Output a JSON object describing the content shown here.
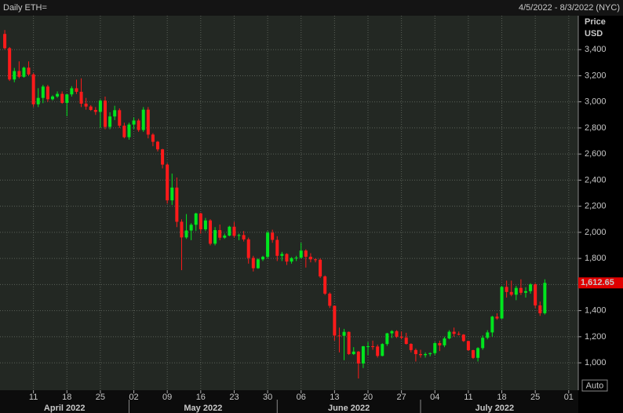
{
  "chart_data": {
    "type": "candlestick",
    "title": "Daily ETH=",
    "date_range": "4/5/2022 - 8/3/2022 (NYC)",
    "y_label": "Price",
    "y_unit": "USD",
    "grid": true,
    "axis_side": "right",
    "x": [
      "2022-04-05",
      "2022-04-06",
      "2022-04-07",
      "2022-04-08",
      "2022-04-09",
      "2022-04-10",
      "2022-04-11",
      "2022-04-12",
      "2022-04-13",
      "2022-04-14",
      "2022-04-15",
      "2022-04-16",
      "2022-04-17",
      "2022-04-18",
      "2022-04-19",
      "2022-04-20",
      "2022-04-21",
      "2022-04-22",
      "2022-04-23",
      "2022-04-24",
      "2022-04-25",
      "2022-04-26",
      "2022-04-27",
      "2022-04-28",
      "2022-04-29",
      "2022-04-30",
      "2022-05-01",
      "2022-05-02",
      "2022-05-03",
      "2022-05-04",
      "2022-05-05",
      "2022-05-06",
      "2022-05-07",
      "2022-05-08",
      "2022-05-09",
      "2022-05-10",
      "2022-05-11",
      "2022-05-12",
      "2022-05-13",
      "2022-05-14",
      "2022-05-15",
      "2022-05-16",
      "2022-05-17",
      "2022-05-18",
      "2022-05-19",
      "2022-05-20",
      "2022-05-21",
      "2022-05-22",
      "2022-05-23",
      "2022-05-24",
      "2022-05-25",
      "2022-05-26",
      "2022-05-27",
      "2022-05-28",
      "2022-05-29",
      "2022-05-30",
      "2022-05-31",
      "2022-06-01",
      "2022-06-02",
      "2022-06-03",
      "2022-06-04",
      "2022-06-05",
      "2022-06-06",
      "2022-06-07",
      "2022-06-08",
      "2022-06-09",
      "2022-06-10",
      "2022-06-11",
      "2022-06-12",
      "2022-06-13",
      "2022-06-14",
      "2022-06-15",
      "2022-06-16",
      "2022-06-17",
      "2022-06-18",
      "2022-06-19",
      "2022-06-20",
      "2022-06-21",
      "2022-06-22",
      "2022-06-23",
      "2022-06-24",
      "2022-06-25",
      "2022-06-26",
      "2022-06-27",
      "2022-06-28",
      "2022-06-29",
      "2022-06-30",
      "2022-07-01",
      "2022-07-02",
      "2022-07-03",
      "2022-07-04",
      "2022-07-05",
      "2022-07-06",
      "2022-07-07",
      "2022-07-08",
      "2022-07-09",
      "2022-07-10",
      "2022-07-11",
      "2022-07-12",
      "2022-07-13",
      "2022-07-14",
      "2022-07-15",
      "2022-07-16",
      "2022-07-17",
      "2022-07-18",
      "2022-07-19",
      "2022-07-20",
      "2022-07-21",
      "2022-07-22",
      "2022-07-23",
      "2022-07-24",
      "2022-07-25",
      "2022-07-26",
      "2022-07-27"
    ],
    "series": [
      {
        "up_color": "#00e61e",
        "down_color": "#ff1a1a",
        "open": [
          3520,
          3411,
          3171,
          3236,
          3192,
          3262,
          3210,
          2981,
          3030,
          3117,
          3020,
          3041,
          3061,
          2992,
          3057,
          3104,
          3077,
          2986,
          2964,
          2938,
          2923,
          3009,
          2808,
          2888,
          2936,
          2817,
          2729,
          2826,
          2857,
          2784,
          2940,
          2749,
          2694,
          2636,
          2519,
          2245,
          2343,
          2081,
          1961,
          2014,
          2058,
          2145,
          2023,
          2091,
          1913,
          2017,
          1959,
          1975,
          2043,
          1973,
          1979,
          1946,
          1804,
          1725,
          1793,
          1812,
          1997,
          1942,
          1820,
          1834,
          1776,
          1802,
          1806,
          1860,
          1813,
          1793,
          1790,
          1662,
          1530,
          1437,
          1209,
          1207,
          1237,
          1067,
          1086,
          995,
          1127,
          1127,
          1125,
          1053,
          1144,
          1226,
          1243,
          1200,
          1193,
          1145,
          1098,
          1067,
          1059,
          1067,
          1074,
          1151,
          1134,
          1187,
          1238,
          1222,
          1216,
          1167,
          1097,
          1038,
          1113,
          1192,
          1233,
          1354,
          1340,
          1582,
          1543,
          1522,
          1574,
          1537,
          1549,
          1601,
          1440,
          1380
        ],
        "high": [
          3550,
          3420,
          3260,
          3310,
          3270,
          3310,
          3220,
          3105,
          3130,
          3130,
          3050,
          3080,
          3080,
          3060,
          3120,
          3170,
          3180,
          3030,
          2975,
          2960,
          3020,
          3040,
          2920,
          2970,
          2950,
          2840,
          2840,
          2880,
          2870,
          2960,
          2960,
          2760,
          2700,
          2640,
          2530,
          2450,
          2420,
          2100,
          2140,
          2070,
          2150,
          2150,
          2110,
          2100,
          2040,
          2060,
          1990,
          2050,
          2080,
          1990,
          2010,
          1960,
          1820,
          1800,
          1820,
          2010,
          2020,
          1970,
          1850,
          1840,
          1810,
          1820,
          1920,
          1870,
          1840,
          1800,
          1800,
          1670,
          1540,
          1440,
          1270,
          1260,
          1240,
          1120,
          1090,
          1130,
          1160,
          1170,
          1140,
          1150,
          1230,
          1250,
          1250,
          1240,
          1230,
          1150,
          1110,
          1100,
          1080,
          1080,
          1160,
          1170,
          1200,
          1250,
          1270,
          1240,
          1220,
          1170,
          1100,
          1120,
          1210,
          1250,
          1360,
          1380,
          1590,
          1630,
          1630,
          1590,
          1640,
          1580,
          1610,
          1610,
          1470,
          1640
        ],
        "low": [
          3400,
          3160,
          3150,
          3180,
          3185,
          3200,
          2960,
          2960,
          2990,
          3000,
          3010,
          3030,
          2985,
          2890,
          3040,
          3060,
          2960,
          2940,
          2930,
          2900,
          2800,
          2790,
          2790,
          2860,
          2800,
          2720,
          2710,
          2790,
          2770,
          2770,
          2720,
          2660,
          2620,
          2490,
          2220,
          2210,
          2040,
          1710,
          1950,
          1940,
          2010,
          1990,
          2010,
          1900,
          1900,
          1940,
          1950,
          1970,
          1960,
          1940,
          1930,
          1760,
          1700,
          1720,
          1780,
          1800,
          1920,
          1780,
          1780,
          1750,
          1760,
          1780,
          1800,
          1730,
          1770,
          1770,
          1650,
          1520,
          1420,
          1170,
          1080,
          1020,
          1060,
          1060,
          880,
          960,
          1060,
          1100,
          1040,
          1050,
          1130,
          1190,
          1190,
          1180,
          1140,
          1080,
          1010,
          1040,
          1040,
          1050,
          1060,
          1090,
          1120,
          1180,
          1200,
          1210,
          1160,
          1090,
          1030,
          1010,
          1100,
          1180,
          1200,
          1330,
          1335,
          1500,
          1510,
          1480,
          1520,
          1500,
          1530,
          1420,
          1360,
          1370
        ],
        "close": [
          3411,
          3171,
          3236,
          3192,
          3262,
          3210,
          2981,
          3030,
          3117,
          3020,
          3041,
          3061,
          2992,
          3057,
          3104,
          3077,
          2986,
          2964,
          2938,
          2923,
          3009,
          2808,
          2888,
          2936,
          2817,
          2729,
          2826,
          2857,
          2784,
          2940,
          2749,
          2694,
          2636,
          2519,
          2245,
          2343,
          2081,
          1961,
          2014,
          2058,
          2145,
          2023,
          2091,
          1913,
          2017,
          1959,
          1975,
          2043,
          1973,
          1979,
          1946,
          1804,
          1725,
          1793,
          1812,
          1997,
          1942,
          1820,
          1834,
          1776,
          1802,
          1806,
          1860,
          1813,
          1793,
          1790,
          1662,
          1530,
          1437,
          1209,
          1207,
          1237,
          1067,
          1086,
          995,
          1127,
          1127,
          1125,
          1053,
          1144,
          1226,
          1243,
          1200,
          1193,
          1145,
          1098,
          1067,
          1059,
          1067,
          1074,
          1151,
          1134,
          1187,
          1238,
          1222,
          1216,
          1167,
          1097,
          1038,
          1113,
          1192,
          1233,
          1354,
          1340,
          1582,
          1543,
          1522,
          1574,
          1537,
          1549,
          1601,
          1440,
          1380,
          1612.65
        ]
      }
    ],
    "last_price": {
      "value": 1612.65,
      "label": "1,612.65"
    },
    "xlim": [
      "2022-04-04",
      "2022-08-03"
    ],
    "ylim": [
      790,
      3660
    ],
    "yticks": [
      {
        "value": 1000,
        "label": "1,000"
      },
      {
        "value": 1200,
        "label": "1,200"
      },
      {
        "value": 1400,
        "label": "1,400"
      },
      {
        "value": 1600,
        "label": "1,600"
      },
      {
        "value": 1800,
        "label": "1,800"
      },
      {
        "value": 2000,
        "label": "2,000"
      },
      {
        "value": 2200,
        "label": "2,200"
      },
      {
        "value": 2400,
        "label": "2,400"
      },
      {
        "value": 2600,
        "label": "2,600"
      },
      {
        "value": 2800,
        "label": "2,800"
      },
      {
        "value": 3000,
        "label": "3,000"
      },
      {
        "value": 3200,
        "label": "3,200"
      },
      {
        "value": 3400,
        "label": "3,400"
      }
    ],
    "xticks": [
      {
        "value": "2022-04-11",
        "label": "11"
      },
      {
        "value": "2022-04-18",
        "label": "18"
      },
      {
        "value": "2022-04-25",
        "label": "25"
      },
      {
        "value": "2022-05-02",
        "label": "02"
      },
      {
        "value": "2022-05-09",
        "label": "09"
      },
      {
        "value": "2022-05-16",
        "label": "16"
      },
      {
        "value": "2022-05-23",
        "label": "23"
      },
      {
        "value": "2022-05-30",
        "label": "30"
      },
      {
        "value": "2022-06-06",
        "label": "06"
      },
      {
        "value": "2022-06-13",
        "label": "13"
      },
      {
        "value": "2022-06-20",
        "label": "20"
      },
      {
        "value": "2022-06-27",
        "label": "27"
      },
      {
        "value": "2022-07-04",
        "label": "04"
      },
      {
        "value": "2022-07-11",
        "label": "11"
      },
      {
        "value": "2022-07-18",
        "label": "18"
      },
      {
        "value": "2022-07-25",
        "label": "25"
      },
      {
        "value": "2022-08-01",
        "label": "01"
      }
    ],
    "months": [
      {
        "value": "2022-04",
        "label": "April 2022"
      },
      {
        "value": "2022-05",
        "label": "May 2022"
      },
      {
        "value": "2022-06",
        "label": "June 2022"
      },
      {
        "value": "2022-07",
        "label": "July 2022"
      }
    ]
  },
  "controls": {
    "auto": "Auto"
  }
}
